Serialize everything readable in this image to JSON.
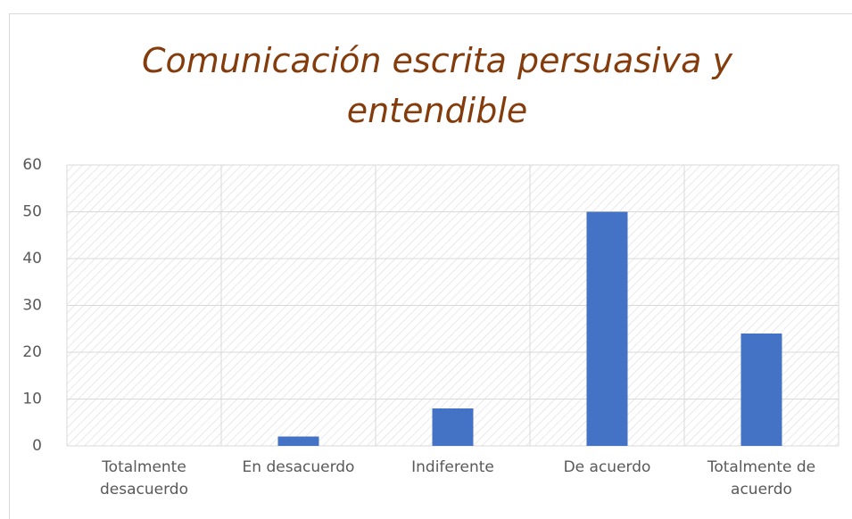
{
  "chart_data": {
    "type": "bar",
    "title": "Comunicación escrita persuasiva y entendible",
    "categories": [
      "Totalmente desacuerdo",
      "En desacuerdo",
      "Indiferente",
      "De acuerdo",
      "Totalmente de acuerdo"
    ],
    "values": [
      0,
      2,
      8,
      50,
      24
    ],
    "color": "#4472c4",
    "ylim": [
      0,
      60
    ],
    "yticks": [
      0,
      10,
      20,
      30,
      40,
      50,
      60
    ],
    "grid": true
  }
}
